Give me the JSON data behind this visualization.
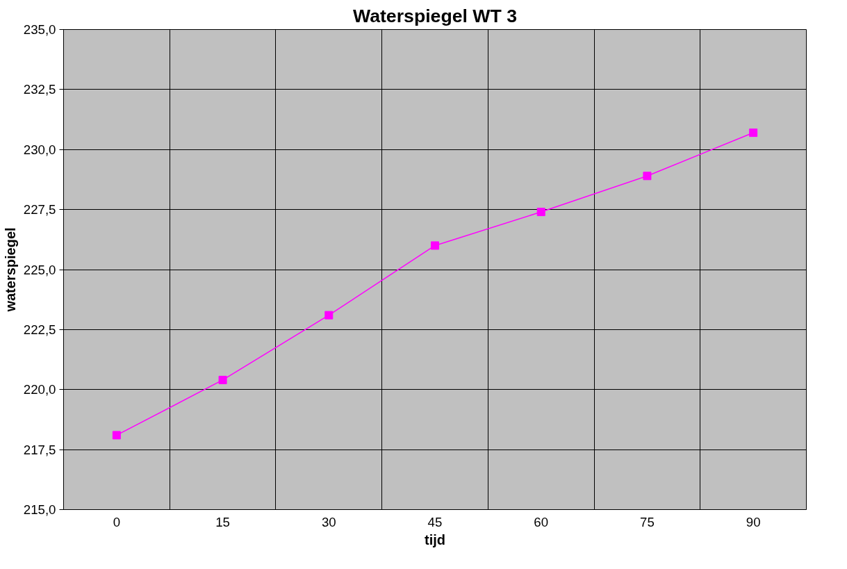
{
  "chart_data": {
    "type": "line",
    "title": "Waterspiegel WT 3",
    "xlabel": "tijd",
    "ylabel": "waterspiegel",
    "categories": [
      "0",
      "15",
      "30",
      "45",
      "60",
      "75",
      "90"
    ],
    "series": [
      {
        "color": "#ff00ff",
        "values": [
          218.1,
          220.4,
          223.1,
          226.0,
          227.4,
          228.9,
          230.7
        ]
      }
    ],
    "ylim": [
      215,
      235
    ],
    "yticks": [
      {
        "value": 215,
        "label": "215,0"
      },
      {
        "value": 217.5,
        "label": "217,5"
      },
      {
        "value": 220,
        "label": "220,0"
      },
      {
        "value": 222.5,
        "label": "222,5"
      },
      {
        "value": 225,
        "label": "225,0"
      },
      {
        "value": 227.5,
        "label": "227,5"
      },
      {
        "value": 230,
        "label": "230,0"
      },
      {
        "value": 232.5,
        "label": "232,5"
      },
      {
        "value": 235,
        "label": "235,0"
      }
    ],
    "grid": true,
    "marker": "square",
    "line_style": "solid"
  }
}
